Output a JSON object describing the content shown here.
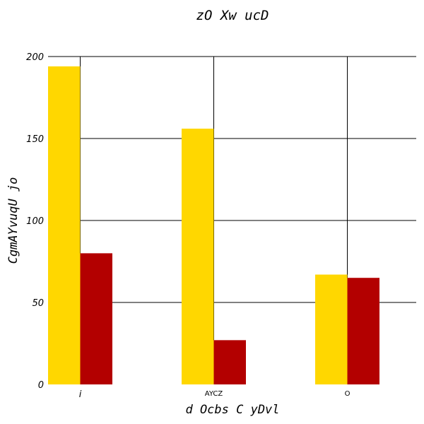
{
  "chart_data": {
    "type": "bar",
    "title": "zO Xw ucD",
    "xlabel": "d Ocbs C yDvl",
    "ylabel": "CgmAYvuqU jo",
    "categories": [
      "i",
      "AYCZ",
      "O"
    ],
    "series": [
      {
        "values": [
          194,
          156,
          67
        ]
      },
      {
        "values": [
          80,
          27,
          65
        ]
      }
    ],
    "ylim": [
      0,
      200
    ],
    "yticks": [
      0,
      50,
      100,
      150,
      200
    ],
    "grid": true,
    "legend": "none"
  },
  "colors": {
    "series": [
      "#ffd700",
      "#b30000"
    ],
    "grid": "#000000"
  }
}
